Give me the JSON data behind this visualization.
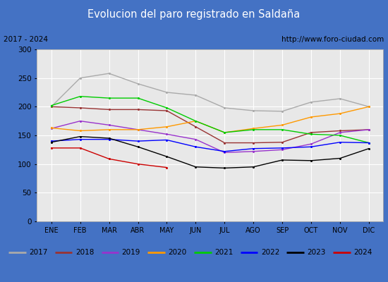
{
  "title": "Evolucion del paro registrado en Saldaña",
  "subtitle_left": "2017 - 2024",
  "subtitle_right": "http://www.foro-ciudad.com",
  "months": [
    "ENE",
    "FEB",
    "MAR",
    "ABR",
    "MAY",
    "JUN",
    "JUL",
    "AGO",
    "SEP",
    "OCT",
    "NOV",
    "DIC"
  ],
  "ylim": [
    0,
    300
  ],
  "yticks": [
    0,
    50,
    100,
    150,
    200,
    250,
    300
  ],
  "series": {
    "2017": {
      "color": "#aaaaaa",
      "values": [
        200,
        250,
        258,
        240,
        225,
        220,
        198,
        193,
        192,
        208,
        214,
        200
      ]
    },
    "2018": {
      "color": "#993333",
      "values": [
        200,
        198,
        195,
        195,
        193,
        165,
        137,
        137,
        138,
        155,
        158,
        160
      ]
    },
    "2019": {
      "color": "#9933cc",
      "values": [
        162,
        175,
        168,
        160,
        152,
        143,
        120,
        122,
        125,
        135,
        155,
        160
      ]
    },
    "2020": {
      "color": "#ff9900",
      "values": [
        163,
        158,
        160,
        160,
        165,
        175,
        155,
        162,
        168,
        182,
        188,
        200
      ]
    },
    "2021": {
      "color": "#00cc00",
      "values": [
        202,
        218,
        215,
        215,
        198,
        175,
        155,
        160,
        160,
        152,
        150,
        137
      ]
    },
    "2022": {
      "color": "#0000ff",
      "values": [
        140,
        143,
        143,
        140,
        142,
        130,
        122,
        127,
        128,
        130,
        138,
        137
      ]
    },
    "2023": {
      "color": "#000000",
      "values": [
        138,
        148,
        145,
        130,
        113,
        95,
        93,
        95,
        107,
        106,
        110,
        127
      ]
    },
    "2024": {
      "color": "#cc0000",
      "values": [
        128,
        128,
        109,
        100,
        94,
        null,
        null,
        null,
        null,
        null,
        null,
        null
      ]
    }
  },
  "header_bg": "#4472C4",
  "header_text_color": "white",
  "subheader_bg": "white",
  "plot_bg": "#e8e8e8",
  "grid_color": "#ffffff",
  "border_color": "#4472C4",
  "fig_bg": "#4472C4"
}
